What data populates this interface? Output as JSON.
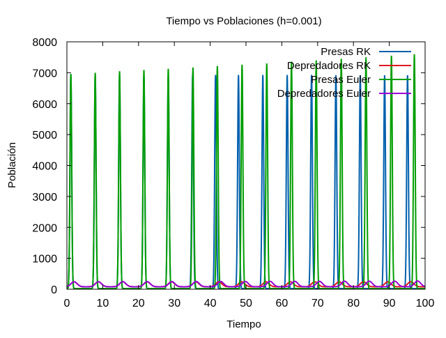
{
  "chart_data": {
    "type": "line",
    "title": "Tiempo vs Poblaciones (h=0.001)",
    "xlabel": "Tiempo",
    "ylabel": "Población",
    "xlim": [
      0,
      100
    ],
    "ylim": [
      0,
      8000
    ],
    "xticks": [
      0,
      10,
      20,
      30,
      40,
      50,
      60,
      70,
      80,
      90,
      100
    ],
    "yticks": [
      0,
      1000,
      2000,
      3000,
      4000,
      5000,
      6000,
      7000,
      8000
    ],
    "legend_position": "top-right",
    "series": [
      {
        "name": "Presas RK",
        "color": "#0060ad",
        "peak_times": [
          1.1,
          7.9,
          14.7,
          21.5,
          28.3,
          35.1,
          41.5,
          47.9,
          54.7,
          61.5,
          68.3,
          75.1,
          81.9,
          88.7,
          95.1
        ],
        "peak_values": [
          6960,
          6950,
          6950,
          6940,
          6940,
          6940,
          6930,
          6930,
          6930,
          6930,
          6930,
          6920,
          6920,
          6920,
          6920
        ],
        "baseline": 20,
        "peak_width": 0.5
      },
      {
        "name": "Depredadores RK",
        "color": "#dd181f",
        "peak_times": [
          2.0,
          8.8,
          15.6,
          22.4,
          29.2,
          36.0,
          42.4,
          48.8,
          55.6,
          62.4,
          69.2,
          76.0,
          82.8,
          89.6,
          96.0
        ],
        "peak_values": [
          240,
          240,
          240,
          240,
          240,
          240,
          240,
          240,
          240,
          240,
          240,
          240,
          240,
          240,
          240
        ],
        "baseline": 80,
        "peak_width": 1.8
      },
      {
        "name": "Presas Euler",
        "color": "#009e00",
        "peak_times": [
          1.1,
          7.9,
          14.7,
          21.5,
          28.3,
          35.2,
          42.0,
          48.9,
          55.8,
          62.7,
          69.6,
          76.6,
          83.5,
          90.6,
          97.0
        ],
        "peak_values": [
          6960,
          7000,
          7050,
          7090,
          7130,
          7170,
          7220,
          7260,
          7300,
          7360,
          7400,
          7450,
          7500,
          7550,
          7600
        ],
        "baseline": 20,
        "peak_width": 0.5
      },
      {
        "name": "Depredadores Euler",
        "color": "#9400d3",
        "peak_times": [
          2.0,
          8.8,
          15.6,
          22.4,
          29.3,
          36.1,
          42.9,
          49.8,
          56.7,
          63.6,
          70.5,
          77.5,
          84.4,
          91.5,
          97.9
        ],
        "peak_values": [
          240,
          240,
          245,
          245,
          245,
          250,
          250,
          250,
          255,
          255,
          255,
          260,
          260,
          260,
          265
        ],
        "baseline": 80,
        "peak_width": 1.8
      }
    ]
  }
}
